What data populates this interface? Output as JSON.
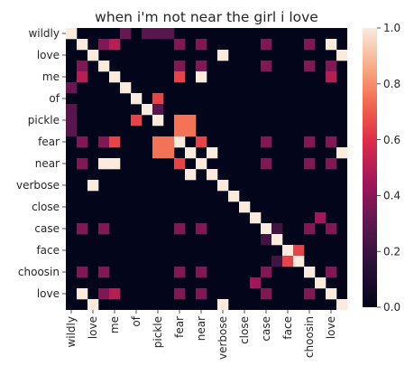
{
  "chart_data": {
    "type": "heatmap",
    "title": "when i'm not near the girl i love",
    "xlabel": "",
    "ylabel": "",
    "x_labels_shown": [
      "wildly",
      "love",
      "me",
      "of",
      "pickle",
      "fear",
      "near",
      "verbose",
      "close",
      "case",
      "face",
      "choosin",
      "love"
    ],
    "y_labels_shown": [
      "wildly",
      "love",
      "me",
      "of",
      "pickle",
      "fear",
      "near",
      "verbose",
      "close",
      "case",
      "face",
      "choosin",
      "love"
    ],
    "grid_size": 26,
    "colorbar": {
      "min": 0.0,
      "max": 1.0,
      "ticks": [
        "0.0",
        "0.2",
        "0.4",
        "0.6",
        "0.8",
        "1.0"
      ]
    },
    "cells": [
      {
        "r": 0,
        "c": 0,
        "v": 1.0
      },
      {
        "r": 0,
        "c": 5,
        "v": 0.32
      },
      {
        "r": 0,
        "c": 7,
        "v": 0.28
      },
      {
        "r": 0,
        "c": 8,
        "v": 0.28
      },
      {
        "r": 0,
        "c": 9,
        "v": 0.28
      },
      {
        "r": 1,
        "c": 1,
        "v": 1.0
      },
      {
        "r": 1,
        "c": 3,
        "v": 0.38
      },
      {
        "r": 1,
        "c": 4,
        "v": 0.5
      },
      {
        "r": 1,
        "c": 10,
        "v": 0.38
      },
      {
        "r": 1,
        "c": 12,
        "v": 0.38
      },
      {
        "r": 1,
        "c": 18,
        "v": 0.38
      },
      {
        "r": 1,
        "c": 22,
        "v": 0.38
      },
      {
        "r": 1,
        "c": 24,
        "v": 1.0
      },
      {
        "r": 2,
        "c": 2,
        "v": 1.0
      },
      {
        "r": 2,
        "c": 14,
        "v": 1.0
      },
      {
        "r": 2,
        "c": 25,
        "v": 1.0
      },
      {
        "r": 3,
        "c": 1,
        "v": 0.38
      },
      {
        "r": 3,
        "c": 3,
        "v": 1.0
      },
      {
        "r": 3,
        "c": 10,
        "v": 0.38
      },
      {
        "r": 3,
        "c": 12,
        "v": 0.38
      },
      {
        "r": 3,
        "c": 18,
        "v": 0.38
      },
      {
        "r": 3,
        "c": 22,
        "v": 0.38
      },
      {
        "r": 3,
        "c": 24,
        "v": 0.38
      },
      {
        "r": 4,
        "c": 1,
        "v": 0.5
      },
      {
        "r": 4,
        "c": 4,
        "v": 1.0
      },
      {
        "r": 4,
        "c": 10,
        "v": 0.65
      },
      {
        "r": 4,
        "c": 12,
        "v": 1.0
      },
      {
        "r": 4,
        "c": 24,
        "v": 0.5
      },
      {
        "r": 5,
        "c": 0,
        "v": 0.32
      },
      {
        "r": 5,
        "c": 5,
        "v": 1.0
      },
      {
        "r": 6,
        "c": 6,
        "v": 1.0
      },
      {
        "r": 6,
        "c": 8,
        "v": 0.65
      },
      {
        "r": 7,
        "c": 0,
        "v": 0.28
      },
      {
        "r": 7,
        "c": 7,
        "v": 1.0
      },
      {
        "r": 7,
        "c": 8,
        "v": 0.28
      },
      {
        "r": 8,
        "c": 0,
        "v": 0.28
      },
      {
        "r": 8,
        "c": 6,
        "v": 0.65
      },
      {
        "r": 8,
        "c": 8,
        "v": 1.0
      },
      {
        "r": 8,
        "c": 10,
        "v": 0.75
      },
      {
        "r": 8,
        "c": 11,
        "v": 0.75
      },
      {
        "r": 9,
        "c": 0,
        "v": 0.28
      },
      {
        "r": 9,
        "c": 10,
        "v": 0.75
      },
      {
        "r": 9,
        "c": 11,
        "v": 0.75
      },
      {
        "r": 10,
        "c": 1,
        "v": 0.38
      },
      {
        "r": 10,
        "c": 3,
        "v": 0.38
      },
      {
        "r": 10,
        "c": 4,
        "v": 0.65
      },
      {
        "r": 10,
        "c": 8,
        "v": 0.75
      },
      {
        "r": 10,
        "c": 9,
        "v": 0.75
      },
      {
        "r": 10,
        "c": 10,
        "v": 1.0
      },
      {
        "r": 10,
        "c": 12,
        "v": 0.65
      },
      {
        "r": 10,
        "c": 18,
        "v": 0.38
      },
      {
        "r": 10,
        "c": 22,
        "v": 0.38
      },
      {
        "r": 10,
        "c": 24,
        "v": 0.38
      },
      {
        "r": 11,
        "c": 8,
        "v": 0.75
      },
      {
        "r": 11,
        "c": 9,
        "v": 0.75
      },
      {
        "r": 11,
        "c": 11,
        "v": 1.0
      },
      {
        "r": 11,
        "c": 13,
        "v": 1.0
      },
      {
        "r": 11,
        "c": 25,
        "v": 1.0
      },
      {
        "r": 12,
        "c": 1,
        "v": 0.38
      },
      {
        "r": 12,
        "c": 3,
        "v": 1.0
      },
      {
        "r": 12,
        "c": 4,
        "v": 1.0
      },
      {
        "r": 12,
        "c": 10,
        "v": 0.65
      },
      {
        "r": 12,
        "c": 12,
        "v": 1.0
      },
      {
        "r": 12,
        "c": 18,
        "v": 0.38
      },
      {
        "r": 12,
        "c": 22,
        "v": 0.38
      },
      {
        "r": 12,
        "c": 24,
        "v": 0.38
      },
      {
        "r": 13,
        "c": 11,
        "v": 1.0
      },
      {
        "r": 13,
        "c": 13,
        "v": 1.0
      },
      {
        "r": 14,
        "c": 2,
        "v": 1.0
      },
      {
        "r": 14,
        "c": 14,
        "v": 1.0
      },
      {
        "r": 15,
        "c": 15,
        "v": 1.0
      },
      {
        "r": 16,
        "c": 16,
        "v": 1.0
      },
      {
        "r": 17,
        "c": 17,
        "v": 1.0
      },
      {
        "r": 17,
        "c": 23,
        "v": 0.45
      },
      {
        "r": 18,
        "c": 1,
        "v": 0.38
      },
      {
        "r": 18,
        "c": 3,
        "v": 0.38
      },
      {
        "r": 18,
        "c": 10,
        "v": 0.38
      },
      {
        "r": 18,
        "c": 12,
        "v": 0.38
      },
      {
        "r": 18,
        "c": 18,
        "v": 1.0
      },
      {
        "r": 18,
        "c": 19,
        "v": 0.22
      },
      {
        "r": 18,
        "c": 22,
        "v": 0.38
      },
      {
        "r": 18,
        "c": 24,
        "v": 0.38
      },
      {
        "r": 19,
        "c": 18,
        "v": 0.22
      },
      {
        "r": 19,
        "c": 19,
        "v": 1.0
      },
      {
        "r": 20,
        "c": 20,
        "v": 1.0
      },
      {
        "r": 20,
        "c": 21,
        "v": 0.65
      },
      {
        "r": 21,
        "c": 19,
        "v": 0.22
      },
      {
        "r": 21,
        "c": 20,
        "v": 0.65
      },
      {
        "r": 21,
        "c": 21,
        "v": 1.0
      },
      {
        "r": 22,
        "c": 1,
        "v": 0.38
      },
      {
        "r": 22,
        "c": 3,
        "v": 0.38
      },
      {
        "r": 22,
        "c": 10,
        "v": 0.38
      },
      {
        "r": 22,
        "c": 12,
        "v": 0.38
      },
      {
        "r": 22,
        "c": 18,
        "v": 0.38
      },
      {
        "r": 22,
        "c": 22,
        "v": 1.0
      },
      {
        "r": 22,
        "c": 24,
        "v": 0.38
      },
      {
        "r": 23,
        "c": 17,
        "v": 0.45
      },
      {
        "r": 23,
        "c": 23,
        "v": 1.0
      },
      {
        "r": 24,
        "c": 1,
        "v": 1.0
      },
      {
        "r": 24,
        "c": 3,
        "v": 0.38
      },
      {
        "r": 24,
        "c": 4,
        "v": 0.5
      },
      {
        "r": 24,
        "c": 10,
        "v": 0.38
      },
      {
        "r": 24,
        "c": 12,
        "v": 0.38
      },
      {
        "r": 24,
        "c": 18,
        "v": 0.38
      },
      {
        "r": 24,
        "c": 22,
        "v": 0.38
      },
      {
        "r": 24,
        "c": 24,
        "v": 1.0
      },
      {
        "r": 25,
        "c": 2,
        "v": 1.0
      },
      {
        "r": 25,
        "c": 14,
        "v": 1.0
      },
      {
        "r": 25,
        "c": 25,
        "v": 1.0
      }
    ]
  }
}
